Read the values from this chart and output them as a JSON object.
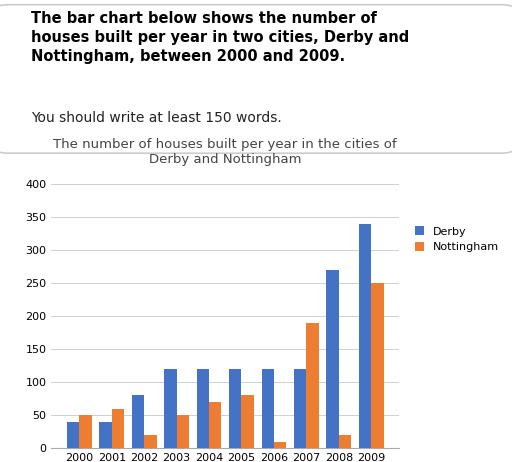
{
  "title": "The number of houses built per year in the cities of\nDerby and Nottingham",
  "years": [
    2000,
    2001,
    2002,
    2003,
    2004,
    2005,
    2006,
    2007,
    2008,
    2009
  ],
  "derby": [
    40,
    40,
    80,
    120,
    120,
    120,
    120,
    120,
    270,
    340
  ],
  "nottingham": [
    50,
    60,
    20,
    50,
    70,
    80,
    10,
    190,
    20,
    250
  ],
  "derby_color": "#4472C4",
  "nottingham_color": "#ED7D31",
  "ylim": [
    0,
    420
  ],
  "yticks": [
    0,
    50,
    100,
    150,
    200,
    250,
    300,
    350,
    400
  ],
  "legend_derby": "Derby",
  "legend_nottingham": "Nottingham",
  "title_fontsize": 9.5,
  "tick_fontsize": 8,
  "legend_fontsize": 8,
  "header_bold": "The bar chart below shows the number of\nhouses built per year in two cities, Derby and\nNottingham, between 2000 and 2009.",
  "header_normal": "You should write at least 150 words.",
  "bg_color": "#ffffff"
}
